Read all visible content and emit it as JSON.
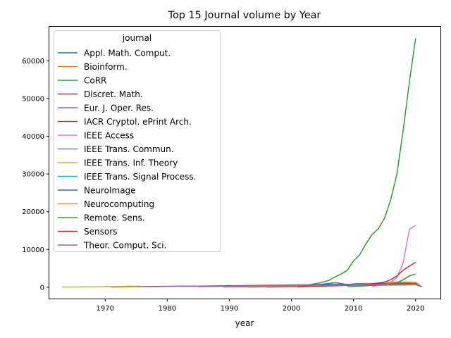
{
  "chart_data": {
    "type": "line",
    "title": "Top 15 Journal volume by Year",
    "xlabel": "year",
    "ylabel": "",
    "xlim": [
      1961,
      2024
    ],
    "ylim": [
      -3000,
      69000
    ],
    "xticks": [
      1970,
      1980,
      1990,
      2000,
      2010,
      2020
    ],
    "yticks": [
      0,
      10000,
      20000,
      30000,
      40000,
      50000,
      60000
    ],
    "grid": false,
    "legend": {
      "title": "journal",
      "placement": "upper-left"
    },
    "series": [
      {
        "name": "Appl. Math. Comput.",
        "color": "#1f77b4",
        "x": [
          1975,
          1980,
          1985,
          1990,
          1995,
          2000,
          2003,
          2005,
          2007,
          2008,
          2009,
          2010,
          2012,
          2014,
          2016,
          2018,
          2020,
          2021
        ],
        "y": [
          150,
          200,
          250,
          300,
          400,
          400,
          500,
          800,
          1200,
          1000,
          700,
          900,
          1000,
          1000,
          900,
          800,
          900,
          100
        ]
      },
      {
        "name": "Bioinform.",
        "color": "#ff7f0e",
        "x": [
          1985,
          1990,
          1995,
          2000,
          2005,
          2010,
          2015,
          2016,
          2018,
          2020,
          2021
        ],
        "y": [
          100,
          200,
          300,
          400,
          500,
          600,
          700,
          800,
          900,
          1000,
          100
        ]
      },
      {
        "name": "CoRR",
        "color": "#2ca02c",
        "x": [
          1993,
          1996,
          2000,
          2002,
          2003,
          2004,
          2005,
          2006,
          2007,
          2008,
          2009,
          2010,
          2011,
          2012,
          2013,
          2014,
          2015,
          2016,
          2017,
          2018,
          2019,
          2020
        ],
        "y": [
          50,
          100,
          200,
          300,
          700,
          1000,
          1300,
          1800,
          2700,
          3500,
          4500,
          7000,
          8600,
          11500,
          14000,
          15500,
          18300,
          23200,
          30000,
          41500,
          54500,
          65900
        ]
      },
      {
        "name": "Discret. Math.",
        "color": "#d62728",
        "x": [
          1971,
          1975,
          1980,
          1985,
          1990,
          1995,
          2000,
          2005,
          2010,
          2012,
          2015,
          2018,
          2020,
          2021
        ],
        "y": [
          50,
          150,
          250,
          300,
          400,
          500,
          600,
          700,
          800,
          900,
          800,
          800,
          900,
          100
        ]
      },
      {
        "name": "Eur. J. Oper. Res.",
        "color": "#9467bd",
        "x": [
          1977,
          1980,
          1985,
          1990,
          1995,
          2000,
          2005,
          2010,
          2015,
          2018,
          2020,
          2021
        ],
        "y": [
          100,
          200,
          300,
          300,
          400,
          500,
          600,
          700,
          800,
          900,
          1000,
          100
        ]
      },
      {
        "name": "IACR Cryptol. ePrint Arch.",
        "color": "#8c564b",
        "x": [
          1996,
          2000,
          2005,
          2010,
          2012,
          2015,
          2018,
          2020,
          2021
        ],
        "y": [
          50,
          100,
          300,
          700,
          900,
          1000,
          1100,
          1000,
          100
        ]
      },
      {
        "name": "IEEE Access",
        "color": "#e377c2",
        "x": [
          2013,
          2014,
          2015,
          2016,
          2017,
          2018,
          2019,
          2020
        ],
        "y": [
          100,
          500,
          800,
          1300,
          2600,
          6500,
          15300,
          16400
        ]
      },
      {
        "name": "IEEE Trans. Commun.",
        "color": "#7f7f7f",
        "x": [
          1970,
          1975,
          1980,
          1985,
          1990,
          1995,
          2000,
          2005,
          2010,
          2015,
          2020,
          2021
        ],
        "y": [
          150,
          200,
          250,
          300,
          300,
          350,
          400,
          500,
          600,
          700,
          800,
          100
        ]
      },
      {
        "name": "IEEE Trans. Inf. Theory",
        "color": "#bcbd22",
        "x": [
          1963,
          1966,
          1969,
          1972,
          1974,
          1976,
          1980,
          1985,
          1990,
          1995,
          2000,
          2005,
          2010,
          2015,
          2020,
          2021
        ],
        "y": [
          50,
          80,
          100,
          150,
          300,
          200,
          250,
          300,
          300,
          350,
          400,
          450,
          500,
          500,
          600,
          100
        ]
      },
      {
        "name": "IEEE Trans. Signal Process.",
        "color": "#17becf",
        "x": [
          1991,
          1995,
          2000,
          2005,
          2010,
          2015,
          2020,
          2021
        ],
        "y": [
          300,
          400,
          450,
          500,
          600,
          700,
          800,
          100
        ]
      },
      {
        "name": "NeuroImage",
        "color": "#1f77b4",
        "x": [
          1992,
          1995,
          2000,
          2005,
          2010,
          2015,
          2020,
          2021
        ],
        "y": [
          100,
          200,
          400,
          600,
          800,
          900,
          800,
          100
        ]
      },
      {
        "name": "Neurocomputing",
        "color": "#ff7f0e",
        "x": [
          1989,
          1995,
          2000,
          2005,
          2010,
          2013,
          2015,
          2018,
          2020,
          2021
        ],
        "y": [
          50,
          100,
          200,
          400,
          700,
          1000,
          1300,
          1400,
          1300,
          100
        ]
      },
      {
        "name": "Remote. Sens.",
        "color": "#2ca02c",
        "x": [
          2009,
          2010,
          2012,
          2014,
          2016,
          2017,
          2018,
          2019,
          2020
        ],
        "y": [
          100,
          200,
          400,
          600,
          900,
          1200,
          2000,
          3000,
          3500
        ]
      },
      {
        "name": "Sensors",
        "color": "#d62728",
        "x": [
          2001,
          2003,
          2005,
          2007,
          2009,
          2011,
          2013,
          2014,
          2015,
          2016,
          2017,
          2018,
          2019,
          2020
        ],
        "y": [
          50,
          200,
          300,
          400,
          500,
          600,
          900,
          1100,
          1400,
          2000,
          3000,
          4500,
          5600,
          6600
        ]
      },
      {
        "name": "Theor. Comput. Sci.",
        "color": "#9467bd",
        "x": [
          1975,
          1980,
          1985,
          1990,
          1995,
          2000,
          2005,
          2010,
          2015,
          2020,
          2021
        ],
        "y": [
          100,
          200,
          300,
          300,
          350,
          400,
          500,
          600,
          700,
          800,
          100
        ]
      }
    ]
  }
}
